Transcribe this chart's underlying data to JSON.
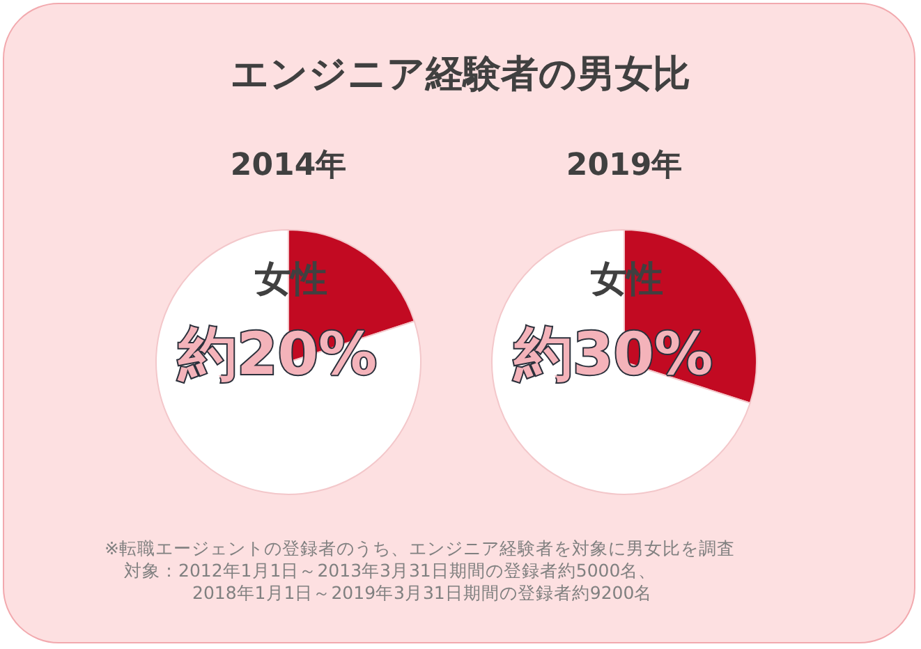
{
  "chart_data": [
    {
      "type": "pie",
      "title": "エンジニア経験者の男女比",
      "subtitle": "2014年",
      "categories": [
        "女性",
        null
      ],
      "values": [
        20,
        80
      ],
      "colors": [
        "#c20a22",
        "#ffffff"
      ],
      "value_labels": [
        "約20%",
        null
      ],
      "annotations": [
        "※転職エージェントの登録者のうち、エンジニア経験者を対象に男女比を調査",
        "対象：2012年1月1日～2013年3月31日期間の登録者約5000名、",
        "2018年1月1日～2019年3月31日期間の登録者約9200名"
      ]
    },
    {
      "type": "pie",
      "subtitle": "2019年",
      "categories": [
        "女性",
        null
      ],
      "values": [
        30,
        70
      ],
      "colors": [
        "#c20a22",
        "#ffffff"
      ],
      "value_labels": [
        "約30%",
        null
      ]
    }
  ]
}
